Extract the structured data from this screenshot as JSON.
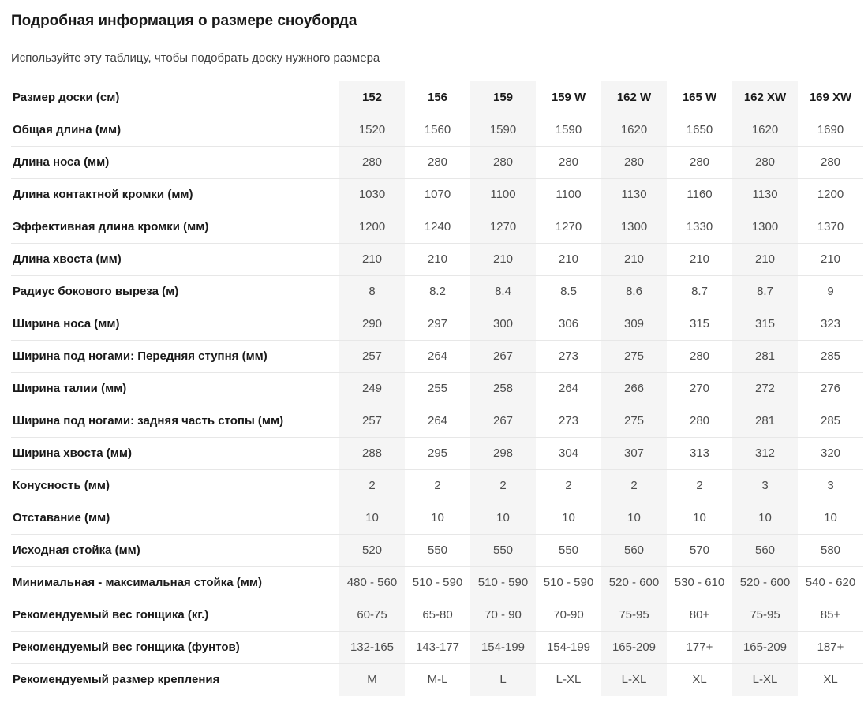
{
  "page": {
    "title": "Подробная информация о размере сноуборда",
    "subtitle": "Используйте эту таблицу, чтобы подобрать доску нужного размера"
  },
  "table": {
    "header_label": "Размер доски (см)",
    "columns": [
      "152",
      "156",
      "159",
      "159 W",
      "162 W",
      "165 W",
      "162 XW",
      "169 XW"
    ],
    "rows": [
      {
        "label": "Общая длина (мм)",
        "values": [
          "1520",
          "1560",
          "1590",
          "1590",
          "1620",
          "1650",
          "1620",
          "1690"
        ]
      },
      {
        "label": "Длина носа (мм)",
        "values": [
          "280",
          "280",
          "280",
          "280",
          "280",
          "280",
          "280",
          "280"
        ]
      },
      {
        "label": "Длина контактной кромки (мм)",
        "values": [
          "1030",
          "1070",
          "1100",
          "1100",
          "1130",
          "1160",
          "1130",
          "1200"
        ]
      },
      {
        "label": "Эффективная длина кромки (мм)",
        "values": [
          "1200",
          "1240",
          "1270",
          "1270",
          "1300",
          "1330",
          "1300",
          "1370"
        ]
      },
      {
        "label": "Длина хвоста (мм)",
        "values": [
          "210",
          "210",
          "210",
          "210",
          "210",
          "210",
          "210",
          "210"
        ]
      },
      {
        "label": "Радиус бокового выреза (м)",
        "values": [
          "8",
          "8.2",
          "8.4",
          "8.5",
          "8.6",
          "8.7",
          "8.7",
          "9"
        ]
      },
      {
        "label": "Ширина носа (мм)",
        "values": [
          "290",
          "297",
          "300",
          "306",
          "309",
          "315",
          "315",
          "323"
        ]
      },
      {
        "label": "Ширина под ногами: Передняя ступня (мм)",
        "values": [
          "257",
          "264",
          "267",
          "273",
          "275",
          "280",
          "281",
          "285"
        ]
      },
      {
        "label": "Ширина талии (мм)",
        "values": [
          "249",
          "255",
          "258",
          "264",
          "266",
          "270",
          "272",
          "276"
        ]
      },
      {
        "label": "Ширина под ногами: задняя часть стопы (мм)",
        "values": [
          "257",
          "264",
          "267",
          "273",
          "275",
          "280",
          "281",
          "285"
        ]
      },
      {
        "label": "Ширина хвоста (мм)",
        "values": [
          "288",
          "295",
          "298",
          "304",
          "307",
          "313",
          "312",
          "320"
        ]
      },
      {
        "label": "Конусность (мм)",
        "values": [
          "2",
          "2",
          "2",
          "2",
          "2",
          "2",
          "3",
          "3"
        ]
      },
      {
        "label": "Отставание (мм)",
        "values": [
          "10",
          "10",
          "10",
          "10",
          "10",
          "10",
          "10",
          "10"
        ]
      },
      {
        "label": "Исходная стойка (мм)",
        "values": [
          "520",
          "550",
          "550",
          "550",
          "560",
          "570",
          "560",
          "580"
        ]
      },
      {
        "label": "Минимальная - максимальная стойка (мм)",
        "values": [
          "480 - 560",
          "510 - 590",
          "510 - 590",
          "510 - 590",
          "520 - 600",
          "530 - 610",
          "520 - 600",
          "540 - 620"
        ]
      },
      {
        "label": "Рекомендуемый вес гонщика (кг.)",
        "values": [
          "60-75",
          "65-80",
          "70 - 90",
          "70-90",
          "75-95",
          "80+",
          "75-95",
          "85+"
        ]
      },
      {
        "label": "Рекомендуемый вес гонщика (фунтов)",
        "values": [
          "132-165",
          "143-177",
          "154-199",
          "154-199",
          "165-209",
          "177+",
          "165-209",
          "187+"
        ]
      },
      {
        "label": "Рекомендуемый размер крепления",
        "values": [
          "M",
          "M-L",
          "L",
          "L-XL",
          "L-XL",
          "XL",
          "L-XL",
          "XL"
        ]
      }
    ]
  },
  "colors": {
    "stripe_background": "#f5f5f5",
    "row_border": "#e7e7e7",
    "label_text": "#1a1a1a",
    "value_text": "#4d4d4d"
  }
}
